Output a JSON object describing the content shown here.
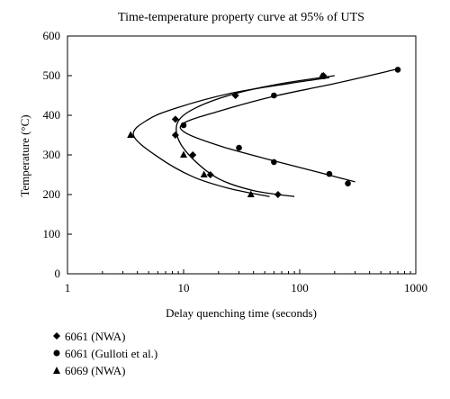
{
  "chart_data": {
    "type": "scatter",
    "title": "Time-temperature property curve at 95% of UTS",
    "xlabel": "Delay quenching time (seconds)",
    "ylabel": "Temperature (°C)",
    "xscale": "log",
    "xlim": [
      1,
      1000
    ],
    "ylim": [
      0,
      600
    ],
    "x_ticks": [
      1,
      10,
      100,
      1000
    ],
    "x_tick_labels": [
      "1",
      "10",
      "100",
      "1000"
    ],
    "y_ticks": [
      0,
      100,
      200,
      300,
      400,
      500,
      600
    ],
    "y_tick_labels": [
      "0",
      "100",
      "200",
      "300",
      "400",
      "500",
      "600"
    ],
    "grid": false,
    "legend_position": "bottom-left",
    "series": [
      {
        "name": "6061 (NWA)",
        "marker": "diamond",
        "points": [
          {
            "x": 8.5,
            "y": 350
          },
          {
            "x": 12,
            "y": 300
          },
          {
            "x": 17,
            "y": 250
          },
          {
            "x": 65,
            "y": 200
          },
          {
            "x": 8.5,
            "y": 390
          },
          {
            "x": 28,
            "y": 450
          },
          {
            "x": 160,
            "y": 500
          }
        ],
        "fit_curve": [
          {
            "x": 90,
            "y": 195
          },
          {
            "x": 40,
            "y": 210
          },
          {
            "x": 20,
            "y": 240
          },
          {
            "x": 12,
            "y": 290
          },
          {
            "x": 9,
            "y": 340
          },
          {
            "x": 9,
            "y": 385
          },
          {
            "x": 13,
            "y": 420
          },
          {
            "x": 28,
            "y": 455
          },
          {
            "x": 70,
            "y": 480
          },
          {
            "x": 200,
            "y": 500
          }
        ]
      },
      {
        "name": "6061 (Gulloti et al.)",
        "marker": "circle",
        "points": [
          {
            "x": 700,
            "y": 515
          },
          {
            "x": 60,
            "y": 450
          },
          {
            "x": 10,
            "y": 375
          },
          {
            "x": 30,
            "y": 318
          },
          {
            "x": 60,
            "y": 282
          },
          {
            "x": 180,
            "y": 252
          },
          {
            "x": 260,
            "y": 228
          }
        ],
        "fit_curve": [
          {
            "x": 700,
            "y": 517
          },
          {
            "x": 200,
            "y": 480
          },
          {
            "x": 60,
            "y": 448
          },
          {
            "x": 20,
            "y": 410
          },
          {
            "x": 10,
            "y": 380
          },
          {
            "x": 10.5,
            "y": 355
          },
          {
            "x": 22,
            "y": 320
          },
          {
            "x": 60,
            "y": 285
          },
          {
            "x": 150,
            "y": 255
          },
          {
            "x": 300,
            "y": 232
          }
        ]
      },
      {
        "name": "6069 (NWA)",
        "marker": "triangle",
        "points": [
          {
            "x": 3.5,
            "y": 350
          },
          {
            "x": 10,
            "y": 300
          },
          {
            "x": 15,
            "y": 250
          },
          {
            "x": 38,
            "y": 200
          },
          {
            "x": 155,
            "y": 498
          }
        ],
        "fit_curve": [
          {
            "x": 55,
            "y": 195
          },
          {
            "x": 25,
            "y": 215
          },
          {
            "x": 12,
            "y": 245
          },
          {
            "x": 6,
            "y": 295
          },
          {
            "x": 3.7,
            "y": 350
          },
          {
            "x": 5,
            "y": 390
          },
          {
            "x": 9,
            "y": 420
          },
          {
            "x": 25,
            "y": 455
          },
          {
            "x": 80,
            "y": 480
          },
          {
            "x": 180,
            "y": 495
          }
        ]
      }
    ]
  }
}
